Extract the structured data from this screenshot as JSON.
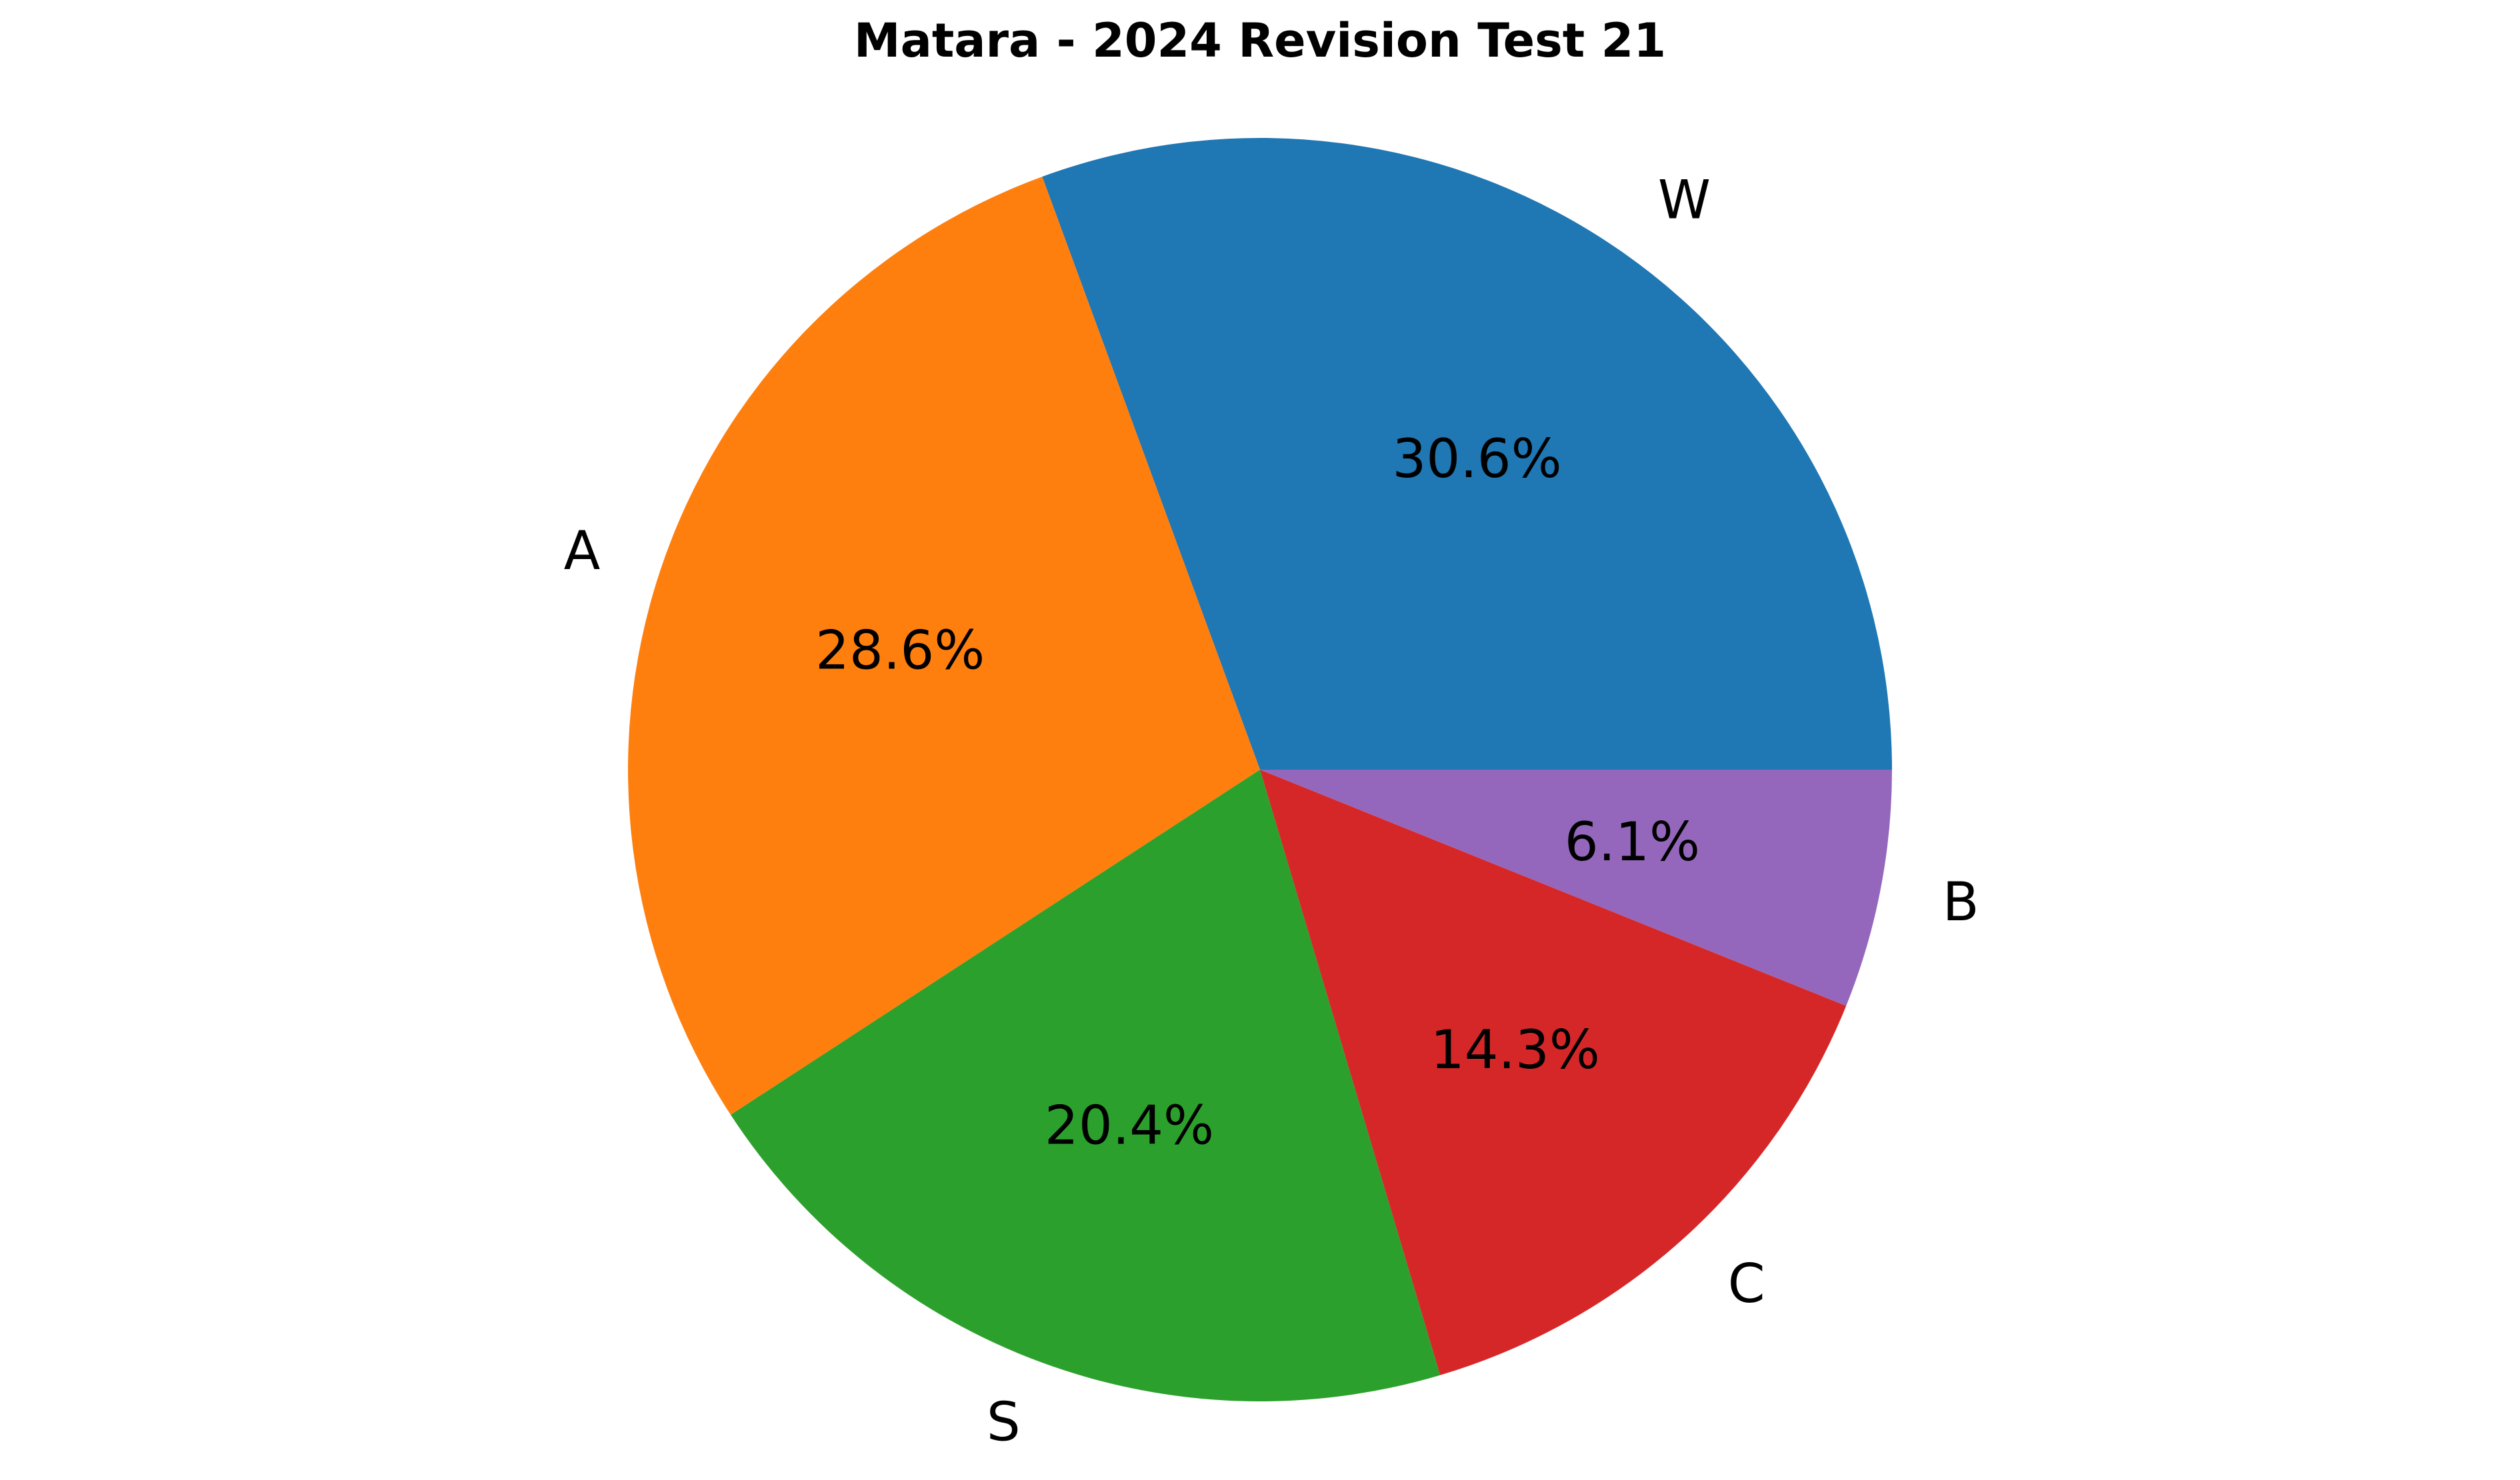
{
  "chart_data": {
    "type": "pie",
    "title": "Matara - 2024 Revision Test 21",
    "start_angle_deg": 0,
    "direction": "counterclockwise",
    "slices": [
      {
        "label": "W",
        "value": 30.6,
        "pct_label": "30.6%",
        "color": "#1f77b4"
      },
      {
        "label": "A",
        "value": 28.6,
        "pct_label": "28.6%",
        "color": "#ff7f0e"
      },
      {
        "label": "S",
        "value": 20.4,
        "pct_label": "20.4%",
        "color": "#2ca02c"
      },
      {
        "label": "C",
        "value": 14.3,
        "pct_label": "14.3%",
        "color": "#d62728"
      },
      {
        "label": "B",
        "value": 6.1,
        "pct_label": "6.1%",
        "color": "#9467bd"
      }
    ]
  }
}
